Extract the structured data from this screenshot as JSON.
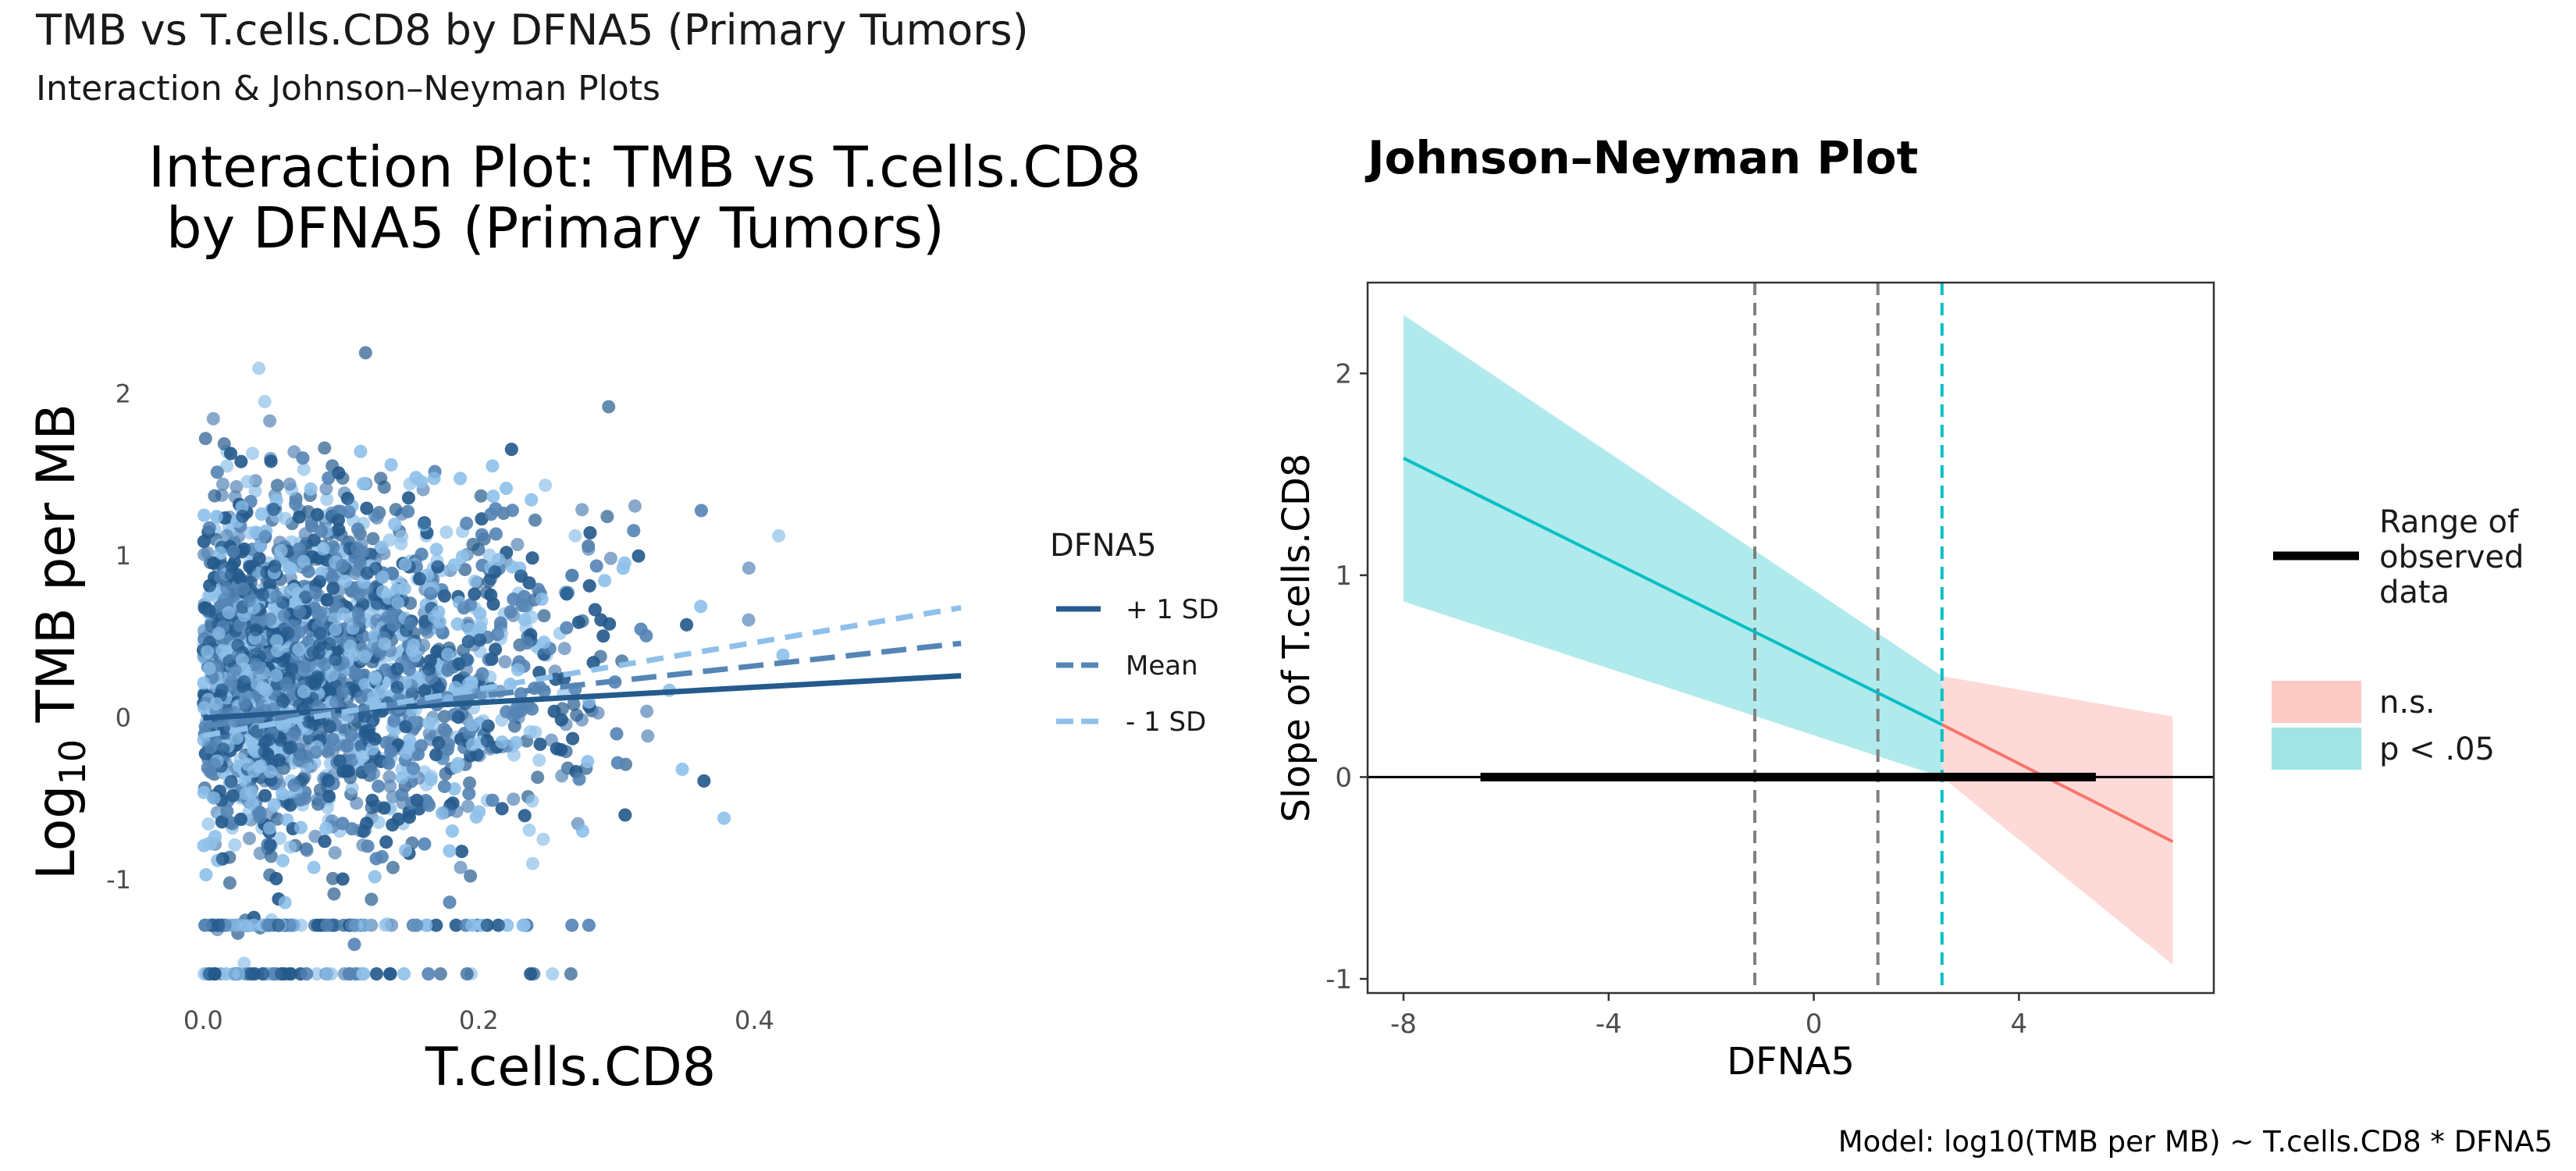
{
  "page": {
    "title": "TMB vs T.cells.CD8 by DFNA5 (Primary Tumors)",
    "subtitle": "Interaction & Johnson–Neyman Plots",
    "caption": "Model: log10(TMB per MB) ~ T.cells.CD8 * DFNA5"
  },
  "chart_data": [
    {
      "id": "interaction",
      "type": "scatter",
      "title_lines": [
        "Interaction Plot: TMB vs T.cells.CD8",
        " by DFNA5 (Primary Tumors)"
      ],
      "xlabel": "T.cells.CD8",
      "ylabel_base": "Log",
      "ylabel_sub": "10",
      "ylabel_rest": " TMB per MB",
      "xlim": [
        -0.02,
        0.555
      ],
      "ylim": [
        -1.65,
        2.6
      ],
      "x_ticks": [
        0.0,
        0.2,
        0.4
      ],
      "x_tick_labels": [
        "0.0",
        "0.2",
        "0.4"
      ],
      "y_ticks": [
        -1,
        0,
        1,
        2
      ],
      "y_tick_labels": [
        "-1",
        "0",
        "1",
        "2"
      ],
      "grid": false,
      "legend": {
        "title": "DFNA5",
        "position": "right",
        "entries": [
          {
            "label": "+ 1 SD",
            "color": "#245a8c",
            "dash": "solid"
          },
          {
            "label": "Mean",
            "color": "#5585b5",
            "dash": "dashed"
          },
          {
            "label": "- 1 SD",
            "color": "#8fc0ea",
            "dash": "dashed"
          }
        ]
      },
      "point_colors": [
        "#245a8c",
        "#5585b5",
        "#8fc0ea"
      ],
      "series": [
        {
          "name": "+ 1 SD",
          "x": [
            0.0,
            0.55
          ],
          "y": [
            0.0,
            0.26
          ]
        },
        {
          "name": "Mean",
          "x": [
            0.0,
            0.55
          ],
          "y": [
            -0.05,
            0.46
          ]
        },
        {
          "name": "- 1 SD",
          "x": [
            0.0,
            0.55
          ],
          "y": [
            -0.11,
            0.68
          ]
        }
      ],
      "scatter_summary": {
        "x_range": [
          0.0,
          0.55
        ],
        "y_range": [
          -1.58,
          2.58
        ],
        "n_points_approx": 3500,
        "y_floor_values": [
          -1.28,
          -1.58
        ]
      }
    },
    {
      "id": "johnson-neyman",
      "type": "line",
      "title": "Johnson–Neyman Plot",
      "xlabel": "DFNA5",
      "ylabel": "Slope of T.cells.CD8",
      "xlim": [
        -8.7,
        7.8
      ],
      "ylim": [
        -1.07,
        2.45
      ],
      "x_ticks": [
        -8,
        -4,
        0,
        4
      ],
      "x_tick_labels": [
        "-8",
        "-4",
        "0",
        "4"
      ],
      "y_ticks": [
        -1,
        0,
        1,
        2
      ],
      "y_tick_labels": [
        "-1",
        "0",
        "1",
        "2"
      ],
      "grid": false,
      "significance_boundary": 2.5,
      "mean_minus_1sd": -1.15,
      "mean_plus_1sd": 1.25,
      "observed_range": [
        -6.5,
        5.5
      ],
      "significant": {
        "x": [
          -8,
          2.5
        ],
        "y": [
          1.58,
          0.26
        ],
        "ci_lower": [
          0.87,
          0.0
        ],
        "ci_upper": [
          2.29,
          0.5
        ],
        "color": "#00bfc4",
        "fill": "#a9e8ea"
      },
      "nonsignificant": {
        "x": [
          2.5,
          7
        ],
        "y": [
          0.26,
          -0.32
        ],
        "ci_lower": [
          0.0,
          -0.93
        ],
        "ci_upper": [
          0.5,
          0.3
        ],
        "color": "#f8766d",
        "fill": "#fdd6d3"
      },
      "legend": {
        "position": "right",
        "range_label": [
          "Range of",
          "observed",
          "data"
        ],
        "entries": [
          {
            "label": "n.s.",
            "color": "#fcc9c5"
          },
          {
            "label": "p < .05",
            "color": "#a0e4e6"
          }
        ]
      }
    }
  ]
}
